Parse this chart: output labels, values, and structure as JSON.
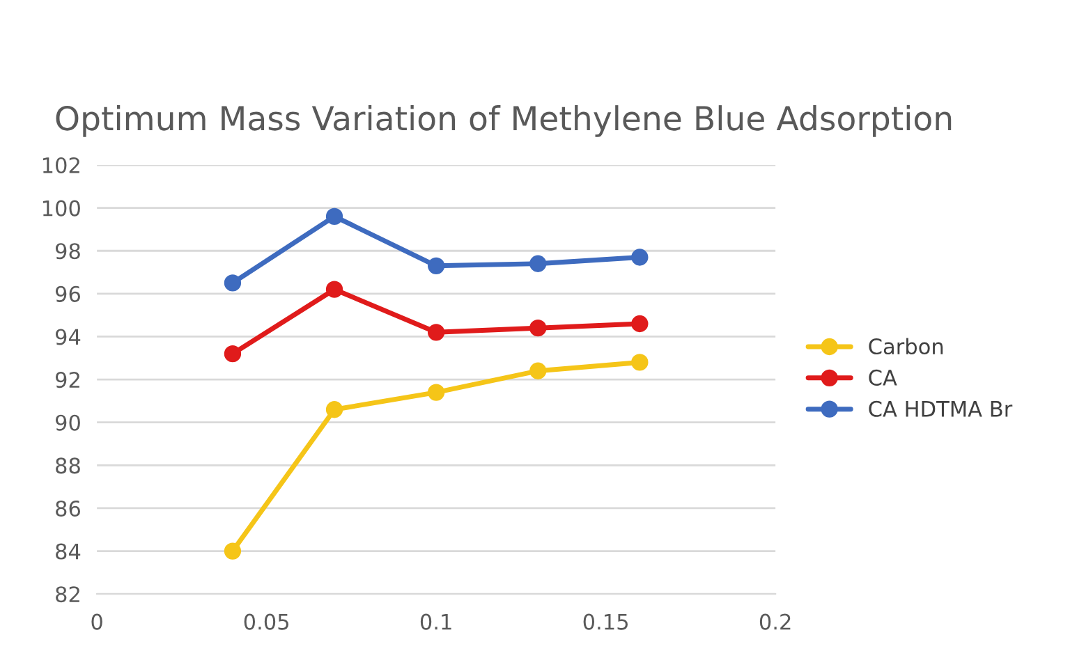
{
  "chart_data": {
    "type": "line",
    "title": "Optimum Mass Variation of Methylene Blue Adsorption",
    "x": [
      0.04,
      0.07,
      0.1,
      0.13,
      0.16
    ],
    "series": [
      {
        "name": "Carbon",
        "color": "#f5c518",
        "values": [
          84.0,
          90.6,
          91.4,
          92.4,
          92.8
        ]
      },
      {
        "name": "CA",
        "color": "#e01b1b",
        "values": [
          93.2,
          96.2,
          94.2,
          94.4,
          94.6
        ]
      },
      {
        "name": "CA HDTMA Br",
        "color": "#3e6bbf",
        "values": [
          96.5,
          99.6,
          97.3,
          97.4,
          97.7
        ]
      }
    ],
    "xlim": [
      0,
      0.2
    ],
    "xticks": [
      0,
      0.05,
      0.1,
      0.15,
      0.2
    ],
    "ylim": [
      82,
      102
    ],
    "yticks": [
      82,
      84,
      86,
      88,
      90,
      92,
      94,
      96,
      98,
      100,
      102
    ],
    "grid": "y",
    "legend": "right",
    "marker": "circle",
    "line_style": "solid"
  }
}
